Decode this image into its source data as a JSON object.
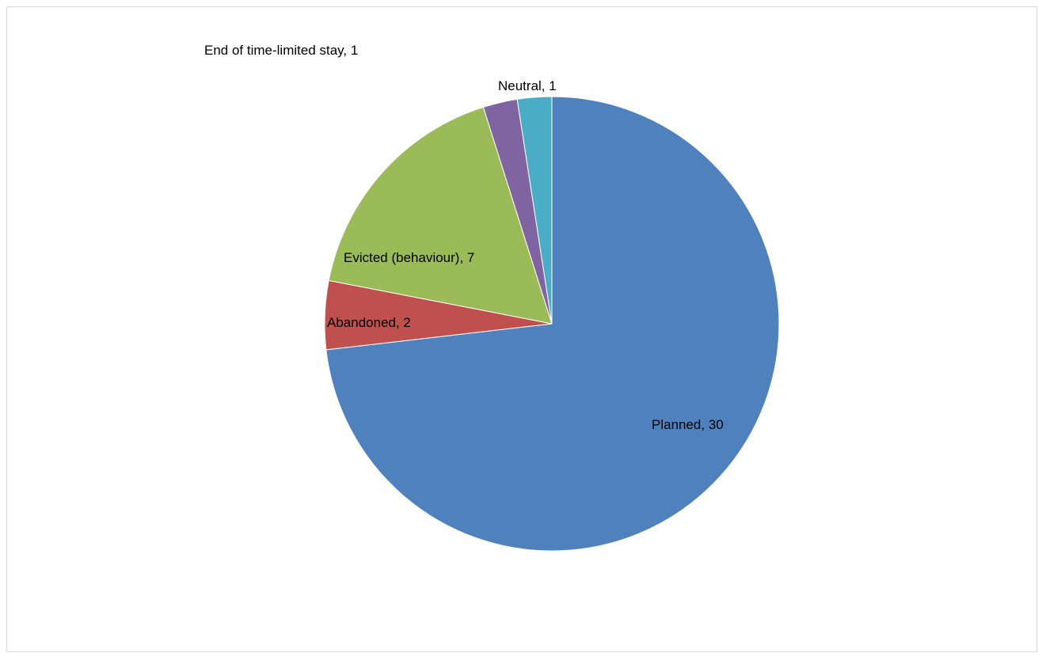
{
  "chart_data": {
    "type": "pie",
    "title": "",
    "slices": [
      {
        "label": "Planned",
        "value": 30,
        "color": "#4F81BD",
        "data_label": "Planned, 30"
      },
      {
        "label": "Abandoned",
        "value": 2,
        "color": "#C0504D",
        "data_label": "Abandoned, 2"
      },
      {
        "label": "Evicted (behaviour)",
        "value": 7,
        "color": "#9BBB59",
        "data_label": "Evicted (behaviour), 7"
      },
      {
        "label": "End of time-limited stay",
        "value": 1,
        "color": "#8064A2",
        "data_label": "End of time-limited stay, 1"
      },
      {
        "label": "Neutral",
        "value": 1,
        "color": "#4BACC6",
        "data_label": "Neutral, 1"
      }
    ],
    "start_angle_deg": 0,
    "direction": "clockwise",
    "legend": "none",
    "data_labels": "category-and-value"
  }
}
